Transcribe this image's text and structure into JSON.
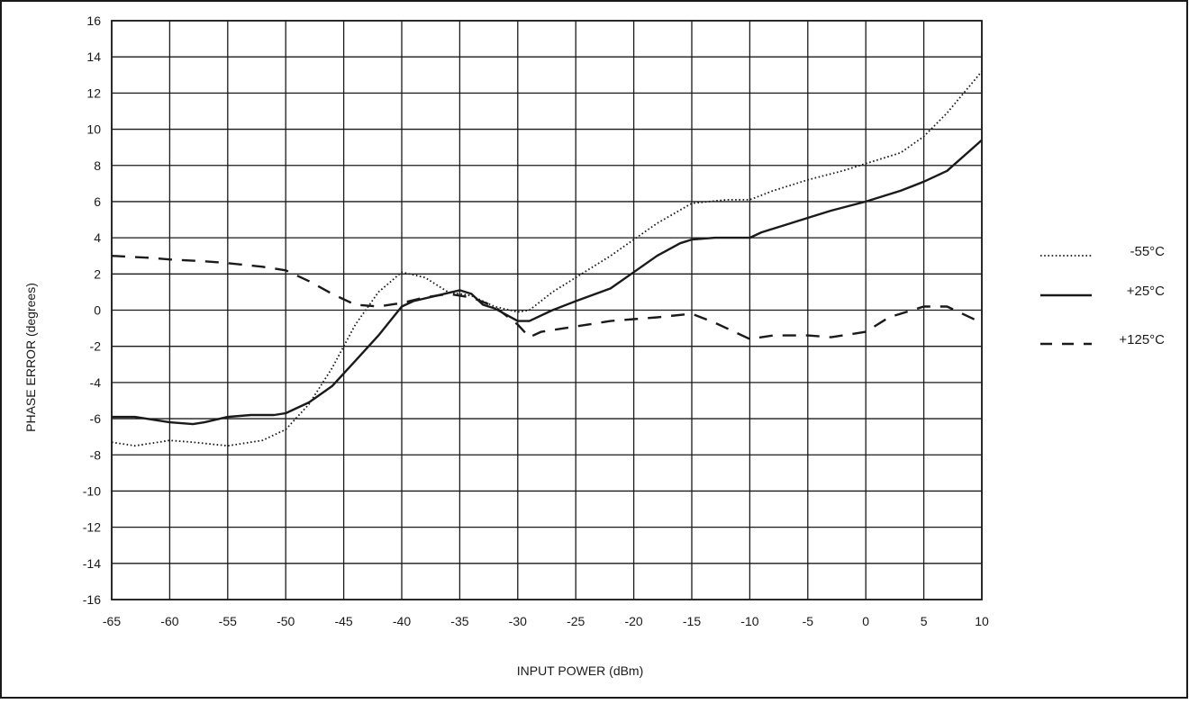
{
  "chart_data": {
    "type": "line",
    "title": "",
    "xlabel": "INPUT POWER (dBm)",
    "ylabel": "PHASE ERROR (degrees)",
    "xlim": [
      -65,
      10
    ],
    "ylim": [
      -16,
      16
    ],
    "xticks": [
      -65,
      -60,
      -55,
      -50,
      -45,
      -40,
      -35,
      -30,
      -25,
      -20,
      -15,
      -10,
      -5,
      0,
      5,
      10
    ],
    "yticks": [
      -16,
      -14,
      -12,
      -10,
      -8,
      -6,
      -4,
      -2,
      0,
      2,
      4,
      6,
      8,
      10,
      12,
      14,
      16
    ],
    "xtick_labels": [
      "-65",
      "-60",
      "-55",
      "-50",
      "-45",
      "-40",
      "-35",
      "-30",
      "-25",
      "-20",
      "-15",
      "-10",
      "-5",
      "0",
      "5",
      "10"
    ],
    "ytick_labels": [
      "-16",
      "-14",
      "-12",
      "-10",
      "-8",
      "-6",
      "-4",
      "-2",
      "0",
      "2",
      "4",
      "6",
      "8",
      "10",
      "12",
      "14",
      "16"
    ],
    "grid": true,
    "legend_position": "right",
    "series": [
      {
        "name": "-55°C",
        "style": "dotted",
        "color": "#1a1a1a",
        "x": [
          -65,
          -63,
          -60,
          -58,
          -55,
          -52,
          -50,
          -48,
          -46,
          -44,
          -42,
          -40,
          -38,
          -36,
          -34,
          -32,
          -30,
          -29,
          -27,
          -25,
          -22,
          -20,
          -18,
          -15,
          -12,
          -10,
          -8,
          -5,
          -2,
          0,
          3,
          5,
          7,
          10
        ],
        "y": [
          -7.3,
          -7.5,
          -7.2,
          -7.3,
          -7.5,
          -7.2,
          -6.6,
          -5.2,
          -3.2,
          -0.8,
          1.0,
          2.1,
          1.8,
          1.0,
          0.8,
          0.2,
          -0.1,
          0.0,
          1.0,
          1.8,
          3.0,
          3.9,
          4.8,
          5.9,
          6.1,
          6.1,
          6.6,
          7.2,
          7.7,
          8.1,
          8.7,
          9.6,
          10.9,
          13.2
        ]
      },
      {
        "name": "+25°C",
        "style": "solid",
        "color": "#1a1a1a",
        "x": [
          -65,
          -63,
          -60,
          -58,
          -57,
          -55,
          -53,
          -51,
          -50,
          -48,
          -46,
          -44,
          -42,
          -40,
          -39,
          -37,
          -35,
          -34,
          -33,
          -32,
          -30,
          -29,
          -27,
          -25,
          -22,
          -20,
          -18,
          -16,
          -15,
          -13,
          -10,
          -9,
          -7,
          -5,
          -3,
          0,
          3,
          5,
          7,
          10
        ],
        "y": [
          -5.9,
          -5.9,
          -6.2,
          -6.3,
          -6.2,
          -5.9,
          -5.8,
          -5.8,
          -5.7,
          -5.1,
          -4.2,
          -2.8,
          -1.4,
          0.2,
          0.5,
          0.8,
          1.1,
          0.9,
          0.3,
          0.1,
          -0.6,
          -0.6,
          0.0,
          0.5,
          1.2,
          2.1,
          3.0,
          3.7,
          3.9,
          4.0,
          4.0,
          4.3,
          4.7,
          5.1,
          5.5,
          6.0,
          6.6,
          7.1,
          7.7,
          9.4
        ]
      },
      {
        "name": "+125°C",
        "style": "dashed",
        "color": "#1a1a1a",
        "x": [
          -65,
          -62,
          -60,
          -57,
          -55,
          -52,
          -50,
          -48,
          -46,
          -44,
          -42,
          -40,
          -38,
          -36,
          -34,
          -32,
          -30,
          -29,
          -28,
          -25,
          -22,
          -20,
          -18,
          -15,
          -13,
          -10,
          -8,
          -5,
          -3,
          0,
          2,
          5,
          7,
          10
        ],
        "y": [
          3.0,
          2.9,
          2.8,
          2.7,
          2.6,
          2.4,
          2.2,
          1.6,
          0.9,
          0.3,
          0.2,
          0.4,
          0.7,
          0.9,
          0.7,
          0.2,
          -0.8,
          -1.5,
          -1.2,
          -0.9,
          -0.6,
          -0.5,
          -0.4,
          -0.2,
          -0.7,
          -1.6,
          -1.4,
          -1.4,
          -1.5,
          -1.2,
          -0.4,
          0.2,
          0.2,
          -0.7
        ]
      }
    ]
  }
}
